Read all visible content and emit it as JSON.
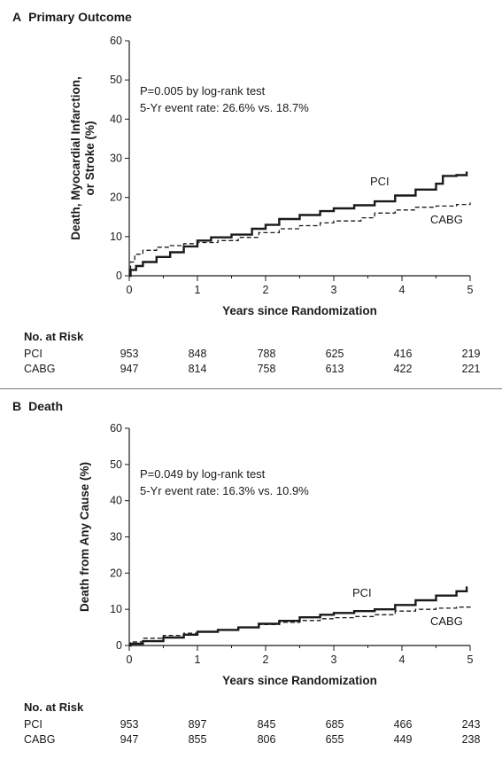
{
  "chart_data": [
    {
      "type": "line",
      "panel_letter": "A",
      "title": "Primary Outcome",
      "xlabel": "Years since Randomization",
      "ylabel": [
        "Death, Myocardial Infarction,",
        "or Stroke (%)"
      ],
      "xlim": [
        0,
        5
      ],
      "ylim": [
        0,
        60
      ],
      "x_ticks": [
        "0",
        "1",
        "2",
        "3",
        "4",
        "5"
      ],
      "y_ticks": [
        "0",
        "10",
        "20",
        "30",
        "40",
        "50",
        "60"
      ],
      "annotation": [
        "P=0.005 by log-rank test",
        "5-Yr event rate: 26.6% vs. 18.7%"
      ],
      "series": [
        {
          "name": "PCI",
          "style": "solid",
          "points": [
            [
              0,
              0
            ],
            [
              0.02,
              1.5
            ],
            [
              0.1,
              2.5
            ],
            [
              0.2,
              3.5
            ],
            [
              0.4,
              4.8
            ],
            [
              0.6,
              6.0
            ],
            [
              0.8,
              7.5
            ],
            [
              1.0,
              9.0
            ],
            [
              1.2,
              9.8
            ],
            [
              1.5,
              10.5
            ],
            [
              1.8,
              12.0
            ],
            [
              2.0,
              13.0
            ],
            [
              2.2,
              14.5
            ],
            [
              2.5,
              15.5
            ],
            [
              2.8,
              16.5
            ],
            [
              3.0,
              17.2
            ],
            [
              3.3,
              18.0
            ],
            [
              3.6,
              19.0
            ],
            [
              3.9,
              20.5
            ],
            [
              4.2,
              22.0
            ],
            [
              4.5,
              23.5
            ],
            [
              4.6,
              25.5
            ],
            [
              4.8,
              25.7
            ],
            [
              4.95,
              26.6
            ]
          ]
        },
        {
          "name": "CABG",
          "style": "dashed",
          "points": [
            [
              0,
              0
            ],
            [
              0.02,
              3.5
            ],
            [
              0.08,
              5.5
            ],
            [
              0.2,
              6.5
            ],
            [
              0.4,
              7.3
            ],
            [
              0.6,
              7.7
            ],
            [
              0.8,
              8.2
            ],
            [
              1.0,
              8.5
            ],
            [
              1.3,
              9.0
            ],
            [
              1.6,
              9.8
            ],
            [
              1.9,
              11.0
            ],
            [
              2.2,
              12.0
            ],
            [
              2.5,
              12.8
            ],
            [
              2.8,
              13.5
            ],
            [
              3.0,
              14.0
            ],
            [
              3.4,
              14.8
            ],
            [
              3.6,
              16.0
            ],
            [
              3.9,
              16.8
            ],
            [
              4.2,
              17.5
            ],
            [
              4.5,
              17.8
            ],
            [
              4.8,
              18.2
            ],
            [
              5.0,
              18.7
            ]
          ]
        }
      ],
      "risk_table": {
        "title": "No. at Risk",
        "rows": [
          {
            "label": "PCI",
            "values": [
              "953",
              "848",
              "788",
              "625",
              "416",
              "219"
            ]
          },
          {
            "label": "CABG",
            "values": [
              "947",
              "814",
              "758",
              "613",
              "422",
              "221"
            ]
          }
        ]
      }
    },
    {
      "type": "line",
      "panel_letter": "B",
      "title": "Death",
      "xlabel": "Years since Randomization",
      "ylabel": [
        "Death from Any Cause (%)"
      ],
      "xlim": [
        0,
        5
      ],
      "ylim": [
        0,
        60
      ],
      "x_ticks": [
        "0",
        "1",
        "2",
        "3",
        "4",
        "5"
      ],
      "y_ticks": [
        "0",
        "10",
        "20",
        "30",
        "40",
        "50",
        "60"
      ],
      "annotation": [
        "P=0.049 by log-rank test",
        "5-Yr event rate: 16.3% vs. 10.9%"
      ],
      "series": [
        {
          "name": "PCI",
          "style": "solid",
          "points": [
            [
              0,
              0
            ],
            [
              0.02,
              0.5
            ],
            [
              0.2,
              1.2
            ],
            [
              0.5,
              2.2
            ],
            [
              0.8,
              3.0
            ],
            [
              1.0,
              3.8
            ],
            [
              1.3,
              4.3
            ],
            [
              1.6,
              5.0
            ],
            [
              1.9,
              6.0
            ],
            [
              2.2,
              6.8
            ],
            [
              2.5,
              7.8
            ],
            [
              2.8,
              8.5
            ],
            [
              3.0,
              9.0
            ],
            [
              3.3,
              9.5
            ],
            [
              3.6,
              10.0
            ],
            [
              3.9,
              11.2
            ],
            [
              4.2,
              12.5
            ],
            [
              4.5,
              13.8
            ],
            [
              4.8,
              15.0
            ],
            [
              4.95,
              16.3
            ]
          ]
        },
        {
          "name": "CABG",
          "style": "dashed",
          "points": [
            [
              0,
              0
            ],
            [
              0.02,
              1.0
            ],
            [
              0.2,
              2.0
            ],
            [
              0.5,
              2.8
            ],
            [
              0.8,
              3.4
            ],
            [
              1.0,
              3.8
            ],
            [
              1.3,
              4.3
            ],
            [
              1.6,
              5.0
            ],
            [
              1.9,
              5.8
            ],
            [
              2.2,
              6.4
            ],
            [
              2.5,
              6.9
            ],
            [
              2.8,
              7.4
            ],
            [
              3.0,
              7.7
            ],
            [
              3.3,
              8.0
            ],
            [
              3.6,
              8.5
            ],
            [
              3.9,
              9.5
            ],
            [
              4.2,
              10.0
            ],
            [
              4.5,
              10.3
            ],
            [
              4.8,
              10.6
            ],
            [
              5.0,
              10.9
            ]
          ]
        }
      ],
      "risk_table": {
        "title": "No. at Risk",
        "rows": [
          {
            "label": "PCI",
            "values": [
              "953",
              "897",
              "845",
              "685",
              "466",
              "243"
            ]
          },
          {
            "label": "CABG",
            "values": [
              "947",
              "855",
              "806",
              "655",
              "449",
              "238"
            ]
          }
        ]
      }
    }
  ]
}
